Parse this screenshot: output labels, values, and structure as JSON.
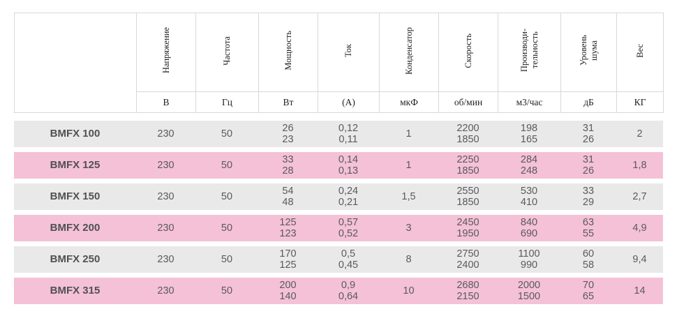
{
  "table": {
    "columns": [
      {
        "label": "",
        "unit": ""
      },
      {
        "label": "Напряжение",
        "unit": "В"
      },
      {
        "label": "Частота",
        "unit": "Гц"
      },
      {
        "label": "Мощность",
        "unit": "Вт"
      },
      {
        "label": "Ток",
        "unit": "(А)"
      },
      {
        "label": "Конденсатор",
        "unit": "мкФ"
      },
      {
        "label": "Скорость",
        "unit": "об/мин"
      },
      {
        "label": "Производи-\nтельность",
        "unit": "м3/час"
      },
      {
        "label": "Уровень\nшума",
        "unit": "дБ"
      },
      {
        "label": "Вес",
        "unit": "КГ"
      }
    ],
    "rows": [
      {
        "model": "BMFX 100",
        "values": [
          "230",
          "50",
          "26\n23",
          "0,12\n0,11",
          "1",
          "2200\n1850",
          "198\n165",
          "31\n26",
          "2"
        ]
      },
      {
        "model": "BMFX 125",
        "values": [
          "230",
          "50",
          "33\n28",
          "0,14\n0,13",
          "1",
          "2250\n1850",
          "284\n248",
          "31\n26",
          "1,8"
        ]
      },
      {
        "model": "BMFX 150",
        "values": [
          "230",
          "50",
          "54\n48",
          "0,24\n0,21",
          "1,5",
          "2550\n1850",
          "530\n410",
          "33\n29",
          "2,7"
        ]
      },
      {
        "model": "BMFX 200",
        "values": [
          "230",
          "50",
          "125\n123",
          "0,57\n0,52",
          "3",
          "2450\n1950",
          "840\n690",
          "63\n55",
          "4,9"
        ]
      },
      {
        "model": "BMFX 250",
        "values": [
          "230",
          "50",
          "170\n125",
          "0,5\n0,45",
          "8",
          "2750\n2400",
          "1100\n990",
          "60\n58",
          "9,4"
        ]
      },
      {
        "model": "BMFX 315",
        "values": [
          "230",
          "50",
          "200\n140",
          "0,9\n0,64",
          "10",
          "2680\n2150",
          "2000\n1500",
          "70\n65",
          "14"
        ]
      }
    ]
  },
  "colors": {
    "row_gray": "#e9e9e9",
    "row_pink": "#f5c1d6",
    "border": "#d8d8d8",
    "text": "#595a5c"
  },
  "chart_data": {
    "type": "table",
    "title": "",
    "columns": [
      "",
      "Напряжение (В)",
      "Частота (Гц)",
      "Мощность (Вт)",
      "Ток (А)",
      "Конденсатор (мкФ)",
      "Скорость (об/мин)",
      "Производительность (м3/час)",
      "Уровень шума (дБ)",
      "Вес (КГ)"
    ],
    "rows": [
      [
        "BMFX 100",
        "230",
        "50",
        "26 / 23",
        "0,12 / 0,11",
        "1",
        "2200 / 1850",
        "198 / 165",
        "31 / 26",
        "2"
      ],
      [
        "BMFX 125",
        "230",
        "50",
        "33 / 28",
        "0,14 / 0,13",
        "1",
        "2250 / 1850",
        "284 / 248",
        "31 / 26",
        "1,8"
      ],
      [
        "BMFX 150",
        "230",
        "50",
        "54 / 48",
        "0,24 / 0,21",
        "1,5",
        "2550 / 1850",
        "530 / 410",
        "33 / 29",
        "2,7"
      ],
      [
        "BMFX 200",
        "230",
        "50",
        "125 / 123",
        "0,57 / 0,52",
        "3",
        "2450 / 1950",
        "840 / 690",
        "63 / 55",
        "4,9"
      ],
      [
        "BMFX 250",
        "230",
        "50",
        "170 / 125",
        "0,5 / 0,45",
        "8",
        "2750 / 2400",
        "1100 / 990",
        "60 / 58",
        "9,4"
      ],
      [
        "BMFX 315",
        "230",
        "50",
        "200 / 140",
        "0,9 / 0,64",
        "10",
        "2680 / 2150",
        "2000 / 1500",
        "70 / 65",
        "14"
      ]
    ]
  }
}
